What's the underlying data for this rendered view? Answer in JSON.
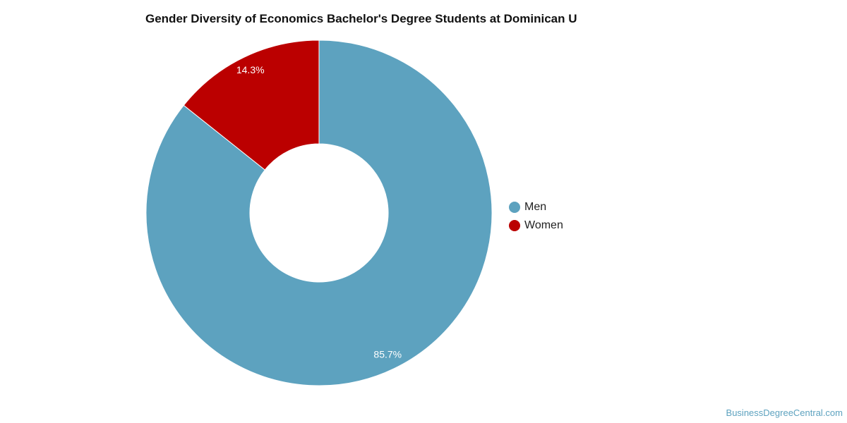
{
  "chart_data": {
    "type": "pie",
    "variant": "donut",
    "title": "Gender Diversity of Economics Bachelor's Degree Students at Dominican U",
    "slices": [
      {
        "name": "Men",
        "value": 85.7,
        "label": "85.7%",
        "color": "#5da2bf"
      },
      {
        "name": "Women",
        "value": 14.3,
        "label": "14.3%",
        "color": "#bb0000"
      }
    ],
    "legend_placement": "right"
  },
  "footer": {
    "source_text": "BusinessDegreeCentral.com",
    "color": "#5da2bf"
  }
}
